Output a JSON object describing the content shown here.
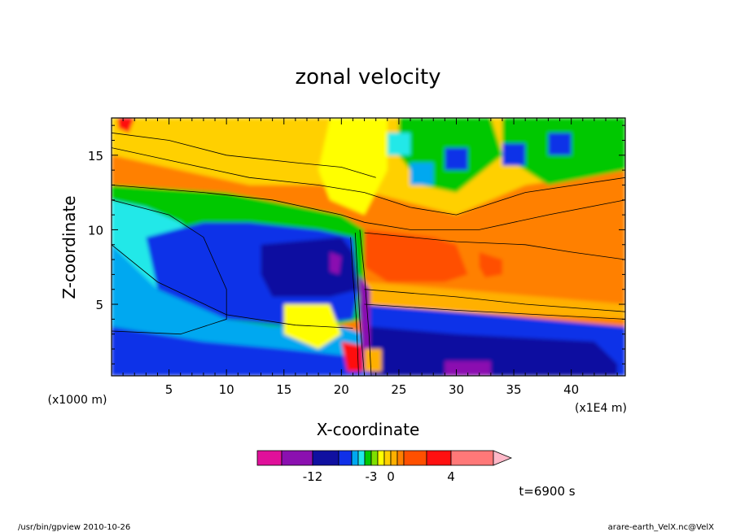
{
  "chart_data": {
    "type": "heatmap",
    "title": "zonal velocity",
    "xlabel": "X-coordinate",
    "ylabel": "Z-coordinate",
    "x_unit_label": "(x1E4 m)",
    "y_unit_label": "(x1000 m)",
    "xlim": [
      0,
      44.7
    ],
    "ylim": [
      0.2,
      17.5
    ],
    "x_ticks": [
      5,
      10,
      15,
      20,
      25,
      30,
      35,
      40
    ],
    "y_ticks": [
      5,
      10,
      15
    ],
    "colorbar": {
      "levels": [
        -16,
        -14,
        -12,
        -10,
        -8,
        -6,
        -4,
        -3,
        -2,
        -1,
        0,
        1,
        2,
        3,
        4,
        6,
        10
      ],
      "colors": [
        "#e0109a",
        "#8b10b0",
        "#1010a0",
        "#1030e8",
        "#00a8f0",
        "#22e8e8",
        "#00c800",
        "#80e000",
        "#ffff00",
        "#ffd000",
        "#ffb000",
        "#ff8000",
        "#ff5000",
        "#ff1010",
        "#ff7878",
        "#ffb8c8"
      ],
      "tick_labels": [
        "-12",
        "-3",
        "0",
        "4"
      ],
      "tick_values": [
        -12,
        -3,
        0,
        4
      ]
    },
    "grid": false,
    "legend": "colorbar-bottom"
  },
  "time_label": "t=6900 s",
  "footer": {
    "left": "/usr/bin/gpview  2010-10-26",
    "right": "arare-earth_VelX.nc@VelX"
  }
}
